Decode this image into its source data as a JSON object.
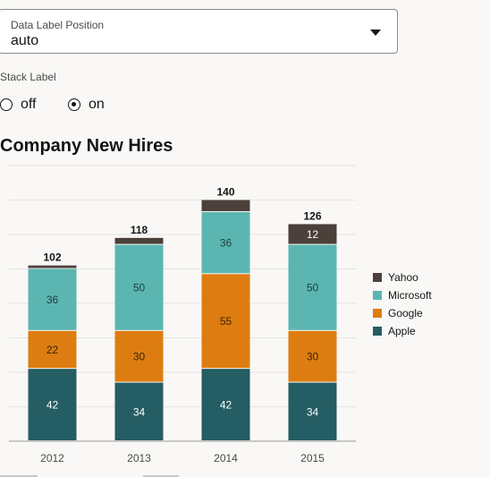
{
  "field": {
    "label": "Data Label Position",
    "value": "auto"
  },
  "stack_label": {
    "label": "Stack Label",
    "options": [
      {
        "label": "off",
        "checked": false
      },
      {
        "label": "on",
        "checked": true
      }
    ]
  },
  "chart_data": {
    "type": "bar",
    "stacked": true,
    "title": "Company New Hires",
    "categories": [
      "2012",
      "2013",
      "2014",
      "2015"
    ],
    "series": [
      {
        "name": "Apple",
        "color": "#245d63",
        "values": [
          42,
          34,
          42,
          34
        ]
      },
      {
        "name": "Google",
        "color": "#dd7d11",
        "values": [
          22,
          30,
          55,
          30
        ]
      },
      {
        "name": "Microsoft",
        "color": "#5bb6b1",
        "values": [
          36,
          50,
          36,
          50
        ]
      },
      {
        "name": "Yahoo",
        "color": "#4b403a",
        "values": [
          2,
          4,
          7,
          12
        ]
      }
    ],
    "totals": [
      102,
      118,
      140,
      126
    ],
    "ylim": [
      0,
      160
    ],
    "grid": true,
    "legend": "right"
  }
}
